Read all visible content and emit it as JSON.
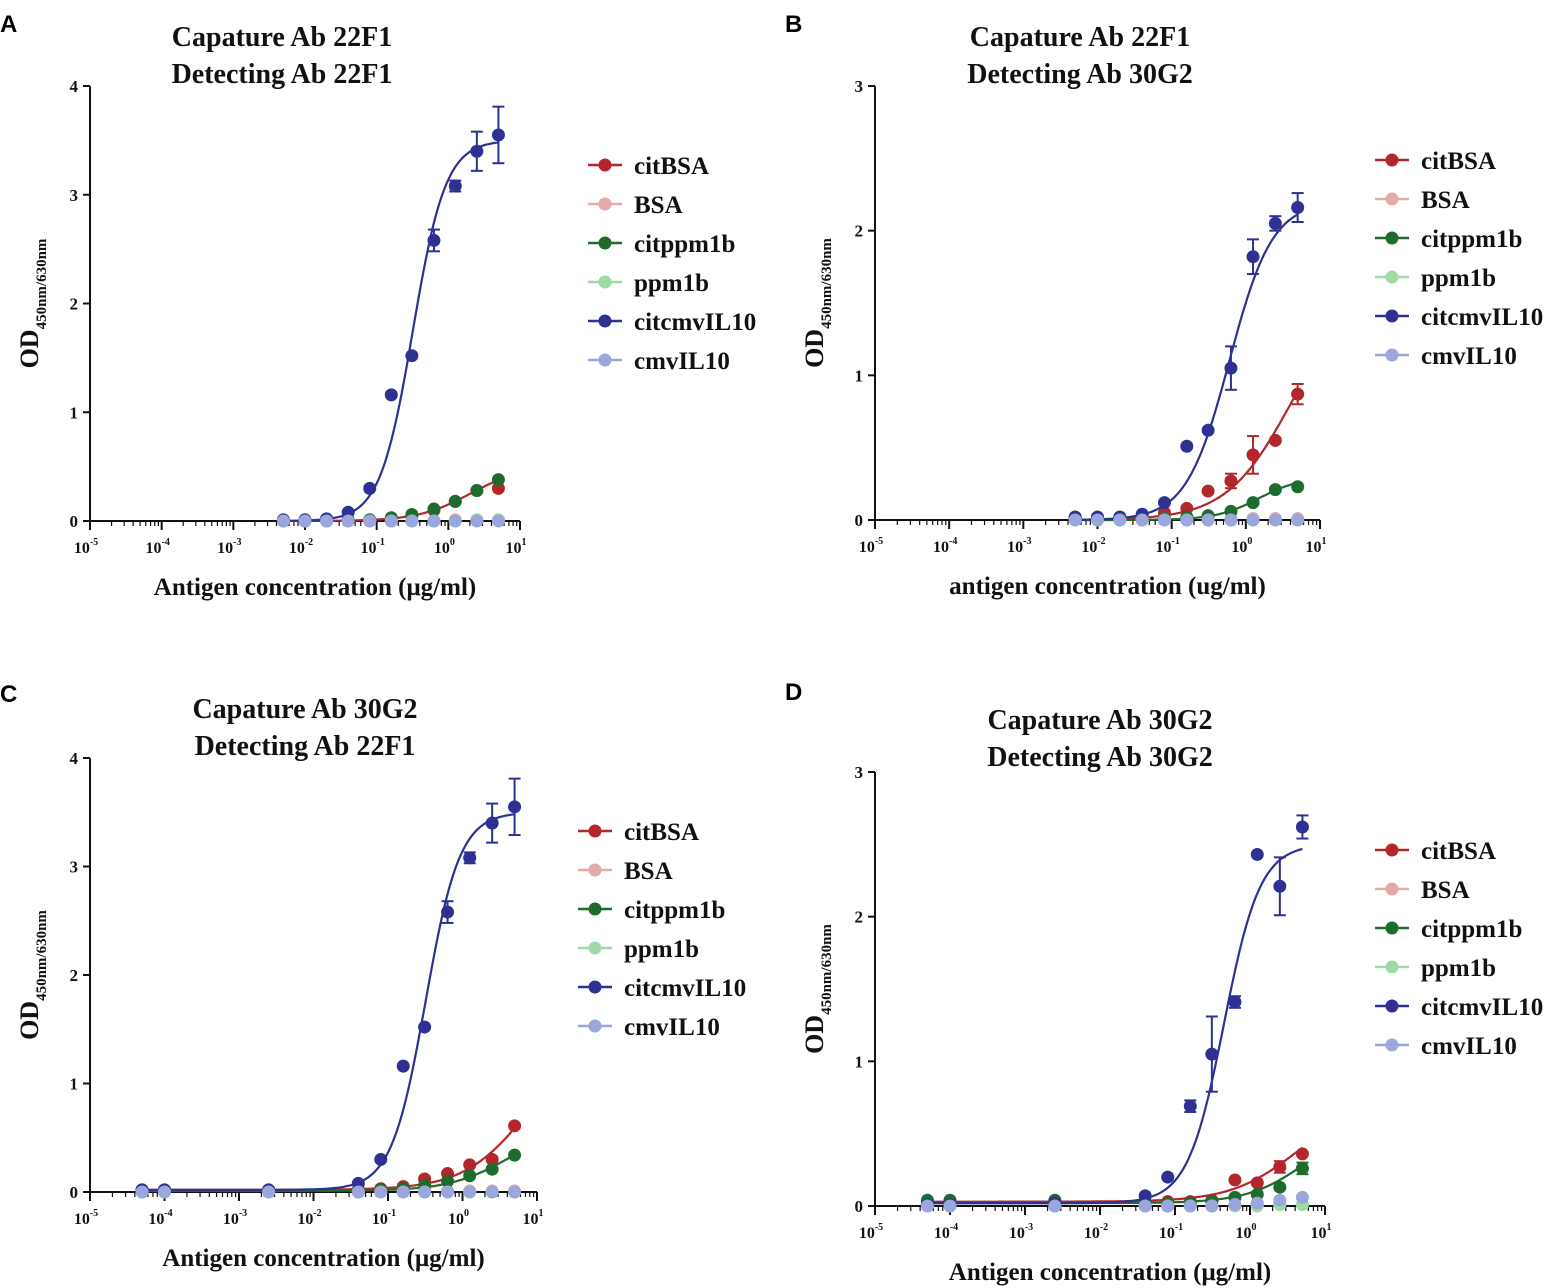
{
  "figure": {
    "ylabel_base": "OD",
    "xtick_base": "10",
    "colors": {
      "citBSA": "#b3262a",
      "BSA": "#e3aaa8",
      "citppm1b": "#1e6b2e",
      "ppm1b": "#9fd9a6",
      "citcmvIL10": "#2e3192",
      "cmvIL10": "#9aa6dc"
    }
  },
  "chart_data": [
    {
      "panel": "A",
      "type": "line",
      "title_line1": "Capature  Ab  22F1",
      "title_line2": "Detecting  Ab  22F1",
      "xlabel": "Antigen concentration  (μg/ml)",
      "ylabel_sub": "450nm/630nm",
      "xscale": "log10",
      "xlim": [
        -5,
        1
      ],
      "ylim": [
        0,
        4
      ],
      "yticks": [
        0,
        1,
        2,
        3,
        4
      ],
      "xticks": [
        -5,
        -4,
        -3,
        -2,
        -1,
        0,
        1
      ],
      "legend_position": "right",
      "series": [
        {
          "name": "citBSA",
          "key": "citBSA",
          "x": [
            0.005,
            0.01,
            0.02,
            0.04,
            0.08,
            0.16,
            0.31,
            0.63,
            1.25,
            2.5,
            5
          ],
          "y": [
            0.01,
            0.01,
            0.01,
            0.01,
            0.01,
            0.02,
            0.05,
            0.1,
            0.18,
            0.28,
            0.3
          ],
          "fit": {
            "bottom": 0.0,
            "top": 0.5,
            "ec50": 2.0,
            "hill": 1.2
          }
        },
        {
          "name": "BSA",
          "key": "BSA",
          "x": [
            0.005,
            0.01,
            0.02,
            0.04,
            0.08,
            0.16,
            0.31,
            0.63,
            1.25,
            2.5,
            5
          ],
          "y": [
            0.0,
            0.0,
            0.0,
            0.0,
            0.0,
            0.0,
            0.0,
            0.0,
            0.01,
            0.01,
            0.01
          ]
        },
        {
          "name": "citppm1b",
          "key": "citppm1b",
          "x": [
            0.005,
            0.01,
            0.02,
            0.04,
            0.08,
            0.16,
            0.31,
            0.63,
            1.25,
            2.5,
            5
          ],
          "y": [
            0.0,
            0.0,
            0.0,
            0.01,
            0.01,
            0.03,
            0.06,
            0.11,
            0.18,
            0.28,
            0.38
          ]
        },
        {
          "name": "ppm1b",
          "key": "ppm1b",
          "x": [
            0.005,
            0.01,
            0.02,
            0.04,
            0.08,
            0.16,
            0.31,
            0.63,
            1.25,
            2.5,
            5
          ],
          "y": [
            0.0,
            0.0,
            0.0,
            0.0,
            0.0,
            0.0,
            0.0,
            0.0,
            0.0,
            0.01,
            0.01
          ]
        },
        {
          "name": "citcmvIL10",
          "key": "citcmvIL10",
          "x": [
            0.005,
            0.01,
            0.02,
            0.04,
            0.08,
            0.16,
            0.31,
            0.63,
            1.25,
            2.5,
            5
          ],
          "y": [
            0.01,
            0.01,
            0.02,
            0.08,
            0.3,
            1.16,
            1.52,
            2.58,
            3.08,
            3.4,
            3.55
          ],
          "err": [
            0,
            0,
            0,
            0,
            0,
            0,
            0,
            0.1,
            0.05,
            0.18,
            0.26
          ],
          "fit": {
            "bottom": 0.0,
            "top": 3.5,
            "ec50": 0.32,
            "hill": 1.9
          }
        },
        {
          "name": "cmvIL10",
          "key": "cmvIL10",
          "x": [
            0.005,
            0.01,
            0.02,
            0.04,
            0.08,
            0.16,
            0.31,
            0.63,
            1.25,
            2.5,
            5
          ],
          "y": [
            0.0,
            0.0,
            0.0,
            0.0,
            0.0,
            0.0,
            0.0,
            0.0,
            0.0,
            0.0,
            0.0
          ]
        }
      ]
    },
    {
      "panel": "B",
      "type": "line",
      "title_line1": "Capature  Ab   22F1",
      "title_line2": "Detecting  Ab   30G2",
      "xlabel": "antigen concentration  (ug/ml)",
      "ylabel_sub": "450nm/630nm",
      "xscale": "log10",
      "xlim": [
        -5,
        1
      ],
      "ylim": [
        0,
        3
      ],
      "yticks": [
        0,
        1,
        2,
        3
      ],
      "xticks": [
        -5,
        -4,
        -3,
        -2,
        -1,
        0,
        1
      ],
      "legend_position": "right",
      "series": [
        {
          "name": "citBSA",
          "key": "citBSA",
          "x": [
            0.005,
            0.01,
            0.02,
            0.04,
            0.08,
            0.16,
            0.31,
            0.63,
            1.25,
            2.5,
            5
          ],
          "y": [
            0.02,
            0.02,
            0.02,
            0.03,
            0.05,
            0.08,
            0.2,
            0.27,
            0.45,
            0.55,
            0.87
          ],
          "err": [
            0,
            0,
            0,
            0,
            0,
            0,
            0,
            0.05,
            0.13,
            0,
            0.07
          ],
          "fit": {
            "bottom": 0.0,
            "top": 1.6,
            "ec50": 4.0,
            "hill": 1.0
          }
        },
        {
          "name": "BSA",
          "key": "BSA",
          "x": [
            0.005,
            0.01,
            0.02,
            0.04,
            0.08,
            0.16,
            0.31,
            0.63,
            1.25,
            2.5,
            5
          ],
          "y": [
            0.01,
            0.01,
            0.01,
            0.01,
            0.01,
            0.01,
            0.01,
            0.01,
            0.01,
            0.01,
            0.01
          ]
        },
        {
          "name": "citppm1b",
          "key": "citppm1b",
          "x": [
            0.005,
            0.01,
            0.02,
            0.04,
            0.08,
            0.16,
            0.31,
            0.63,
            1.25,
            2.5,
            5
          ],
          "y": [
            0.01,
            0.01,
            0.01,
            0.01,
            0.01,
            0.02,
            0.03,
            0.06,
            0.12,
            0.21,
            0.23
          ],
          "fit": {
            "bottom": 0.0,
            "top": 0.3,
            "ec50": 1.5,
            "hill": 1.5
          }
        },
        {
          "name": "ppm1b",
          "key": "ppm1b",
          "x": [
            0.005,
            0.01,
            0.02,
            0.04,
            0.08,
            0.16,
            0.31,
            0.63,
            1.25,
            2.5,
            5
          ],
          "y": [
            0.0,
            0.0,
            0.0,
            0.0,
            0.0,
            0.0,
            0.0,
            0.0,
            0.0,
            0.0,
            0.0
          ]
        },
        {
          "name": "citcmvIL10",
          "key": "citcmvIL10",
          "x": [
            0.005,
            0.01,
            0.02,
            0.04,
            0.08,
            0.16,
            0.31,
            0.63,
            1.25,
            2.5,
            5
          ],
          "y": [
            0.02,
            0.02,
            0.02,
            0.04,
            0.12,
            0.51,
            0.62,
            1.05,
            1.82,
            2.05,
            2.16
          ],
          "err": [
            0,
            0,
            0,
            0,
            0,
            0,
            0,
            0.15,
            0.12,
            0.05,
            0.1
          ],
          "fit": {
            "bottom": 0.0,
            "top": 2.2,
            "ec50": 0.6,
            "hill": 1.5
          }
        },
        {
          "name": "cmvIL10",
          "key": "cmvIL10",
          "x": [
            0.005,
            0.01,
            0.02,
            0.04,
            0.08,
            0.16,
            0.31,
            0.63,
            1.25,
            2.5,
            5
          ],
          "y": [
            0.0,
            0.0,
            0.0,
            0.0,
            0.0,
            0.0,
            0.0,
            0.0,
            0.0,
            0.0,
            0.0
          ]
        }
      ]
    },
    {
      "panel": "C",
      "type": "line",
      "title_line1": "Capature  Ab  30G2",
      "title_line2": "Detecting  Ab  22F1",
      "xlabel": "Antigen concentration  (μg/ml)",
      "ylabel_sub": "450nm/630nm",
      "xscale": "log10",
      "xlim": [
        -5,
        1
      ],
      "ylim": [
        0,
        4
      ],
      "yticks": [
        0,
        1,
        2,
        3,
        4
      ],
      "xticks": [
        -5,
        -4,
        -3,
        -2,
        -1,
        0,
        1
      ],
      "legend_position": "right",
      "series": [
        {
          "name": "citBSA",
          "key": "citBSA",
          "x": [
            5e-05,
            0.0001,
            0.0025,
            0.04,
            0.08,
            0.16,
            0.31,
            0.63,
            1.25,
            2.5,
            5
          ],
          "y": [
            0.02,
            0.02,
            0.02,
            0.02,
            0.03,
            0.05,
            0.12,
            0.17,
            0.25,
            0.3,
            0.61
          ],
          "fit": {
            "bottom": 0.02,
            "top": 1.5,
            "ec50": 8.0,
            "hill": 1.0
          }
        },
        {
          "name": "BSA",
          "key": "BSA",
          "x": [
            5e-05,
            0.0001,
            0.0025,
            0.04,
            0.08,
            0.16,
            0.31,
            0.63,
            1.25,
            2.5,
            5
          ],
          "y": [
            0.0,
            0.0,
            0.0,
            0.0,
            0.0,
            0.0,
            0.01,
            0.01,
            0.01,
            0.01,
            0.01
          ]
        },
        {
          "name": "citppm1b",
          "key": "citppm1b",
          "x": [
            5e-05,
            0.0001,
            0.0025,
            0.04,
            0.08,
            0.16,
            0.31,
            0.63,
            1.25,
            2.5,
            5
          ],
          "y": [
            0.01,
            0.01,
            0.01,
            0.01,
            0.02,
            0.03,
            0.06,
            0.1,
            0.15,
            0.21,
            0.34
          ],
          "fit": {
            "bottom": 0.01,
            "top": 0.6,
            "ec50": 4.0,
            "hill": 1.1
          }
        },
        {
          "name": "ppm1b",
          "key": "ppm1b",
          "x": [
            5e-05,
            0.0001,
            0.0025,
            0.04,
            0.08,
            0.16,
            0.31,
            0.63,
            1.25,
            2.5,
            5
          ],
          "y": [
            0.0,
            0.0,
            0.0,
            0.0,
            0.0,
            0.0,
            0.0,
            0.0,
            0.0,
            0.0,
            0.0
          ]
        },
        {
          "name": "citcmvIL10",
          "key": "citcmvIL10",
          "x": [
            5e-05,
            0.0001,
            0.0025,
            0.04,
            0.08,
            0.16,
            0.31,
            0.63,
            1.25,
            2.5,
            5
          ],
          "y": [
            0.02,
            0.02,
            0.02,
            0.08,
            0.3,
            1.16,
            1.52,
            2.58,
            3.08,
            3.4,
            3.55
          ],
          "err": [
            0,
            0,
            0,
            0,
            0,
            0,
            0,
            0.1,
            0.05,
            0.18,
            0.26
          ],
          "fit": {
            "bottom": 0.02,
            "top": 3.5,
            "ec50": 0.32,
            "hill": 1.9
          }
        },
        {
          "name": "cmvIL10",
          "key": "cmvIL10",
          "x": [
            5e-05,
            0.0001,
            0.0025,
            0.04,
            0.08,
            0.16,
            0.31,
            0.63,
            1.25,
            2.5,
            5
          ],
          "y": [
            0.0,
            0.0,
            0.0,
            0.0,
            0.0,
            0.0,
            0.0,
            0.0,
            0.0,
            0.0,
            0.0
          ]
        }
      ]
    },
    {
      "panel": "D",
      "type": "line",
      "title_line1": "Capature  Ab  30G2",
      "title_line2": "Detecting  Ab  30G2",
      "xlabel": "Antigen concentration  (μg/ml)",
      "ylabel_sub": "450nm/630nm",
      "xscale": "log10",
      "xlim": [
        -5,
        1
      ],
      "ylim": [
        0,
        3
      ],
      "yticks": [
        0,
        1,
        2,
        3
      ],
      "xticks": [
        -5,
        -4,
        -3,
        -2,
        -1,
        0,
        1
      ],
      "legend_position": "right",
      "series": [
        {
          "name": "citBSA",
          "key": "citBSA",
          "x": [
            5e-05,
            0.0001,
            0.0025,
            0.04,
            0.08,
            0.16,
            0.31,
            0.63,
            1.25,
            2.5,
            5
          ],
          "y": [
            0.03,
            0.03,
            0.03,
            0.03,
            0.03,
            0.03,
            0.04,
            0.18,
            0.16,
            0.27,
            0.36
          ],
          "err": [
            0,
            0,
            0,
            0,
            0,
            0,
            0,
            0,
            0,
            0.04,
            0
          ],
          "fit": {
            "bottom": 0.03,
            "top": 0.7,
            "ec50": 4.0,
            "hill": 1.0
          }
        },
        {
          "name": "BSA",
          "key": "BSA",
          "x": [
            5e-05,
            0.0001,
            0.0025,
            0.04,
            0.08,
            0.16,
            0.31,
            0.63,
            1.25,
            2.5,
            5
          ],
          "y": [
            0.01,
            0.01,
            0.01,
            0.01,
            0.01,
            0.01,
            0.01,
            0.01,
            0.01,
            0.01,
            0.01
          ]
        },
        {
          "name": "citppm1b",
          "key": "citppm1b",
          "x": [
            5e-05,
            0.0001,
            0.0025,
            0.04,
            0.08,
            0.16,
            0.31,
            0.63,
            1.25,
            2.5,
            5
          ],
          "y": [
            0.04,
            0.04,
            0.04,
            0.02,
            0.02,
            0.02,
            0.03,
            0.06,
            0.08,
            0.13,
            0.26
          ],
          "err": [
            0,
            0,
            0,
            0,
            0,
            0,
            0,
            0,
            0,
            0,
            0.04
          ],
          "fit": {
            "bottom": 0.02,
            "top": 0.6,
            "ec50": 6.0,
            "hill": 1.1
          }
        },
        {
          "name": "ppm1b",
          "key": "ppm1b",
          "x": [
            5e-05,
            0.0001,
            0.0025,
            0.04,
            0.08,
            0.16,
            0.31,
            0.63,
            1.25,
            2.5,
            5
          ],
          "y": [
            0.0,
            0.0,
            0.0,
            0.0,
            0.0,
            0.0,
            0.0,
            0.0,
            0.0,
            0.01,
            0.01
          ]
        },
        {
          "name": "citcmvIL10",
          "key": "citcmvIL10",
          "x": [
            5e-05,
            0.0001,
            0.0025,
            0.04,
            0.08,
            0.16,
            0.31,
            0.63,
            1.25,
            2.5,
            5
          ],
          "y": [
            0.01,
            0.01,
            0.02,
            0.07,
            0.2,
            0.69,
            1.05,
            1.41,
            2.43,
            2.21,
            2.62
          ],
          "err": [
            0,
            0,
            0,
            0,
            0,
            0.04,
            0.26,
            0.04,
            0,
            0.2,
            0.08
          ],
          "fit": {
            "bottom": 0.02,
            "top": 2.5,
            "ec50": 0.45,
            "hill": 1.8
          }
        },
        {
          "name": "cmvIL10",
          "key": "cmvIL10",
          "x": [
            5e-05,
            0.0001,
            0.0025,
            0.04,
            0.08,
            0.16,
            0.31,
            0.63,
            1.25,
            2.5,
            5
          ],
          "y": [
            0.0,
            0.0,
            0.0,
            0.0,
            0.0,
            0.0,
            0.0,
            0.01,
            0.02,
            0.04,
            0.06
          ]
        }
      ]
    }
  ]
}
